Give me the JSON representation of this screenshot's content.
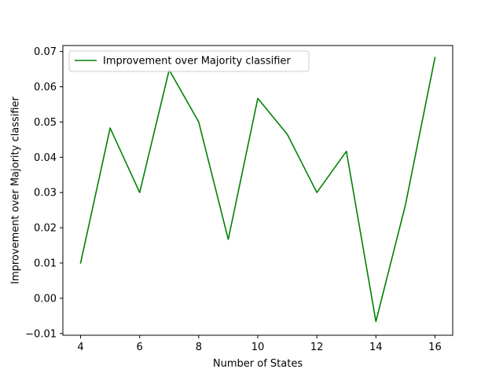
{
  "chart_data": {
    "type": "line",
    "title": "",
    "xlabel": "Number of States",
    "ylabel": "Improvement over Majority classifier",
    "xlim": [
      3.4,
      16.6
    ],
    "ylim": [
      -0.0105,
      0.0717
    ],
    "x_ticks": [
      4,
      6,
      8,
      10,
      12,
      14,
      16
    ],
    "x_tick_labels": [
      "4",
      "6",
      "8",
      "10",
      "12",
      "14",
      "16"
    ],
    "y_ticks": [
      -0.01,
      0.0,
      0.01,
      0.02,
      0.03,
      0.04,
      0.05,
      0.06,
      0.07
    ],
    "y_tick_labels": [
      "−0.01",
      "0.00",
      "0.01",
      "0.02",
      "0.03",
      "0.04",
      "0.05",
      "0.06",
      "0.07"
    ],
    "grid": false,
    "legend_position": "top-left",
    "series": [
      {
        "name": "Improvement over Majority classifier",
        "color": "#008000",
        "x": [
          4,
          5,
          6,
          7,
          8,
          9,
          10,
          11,
          12,
          13,
          14,
          15,
          16
        ],
        "y": [
          0.01,
          0.0483,
          0.03,
          0.0648,
          0.05,
          0.0167,
          0.0567,
          0.0465,
          0.03,
          0.0417,
          -0.0066,
          0.0265,
          0.0683
        ]
      }
    ]
  }
}
